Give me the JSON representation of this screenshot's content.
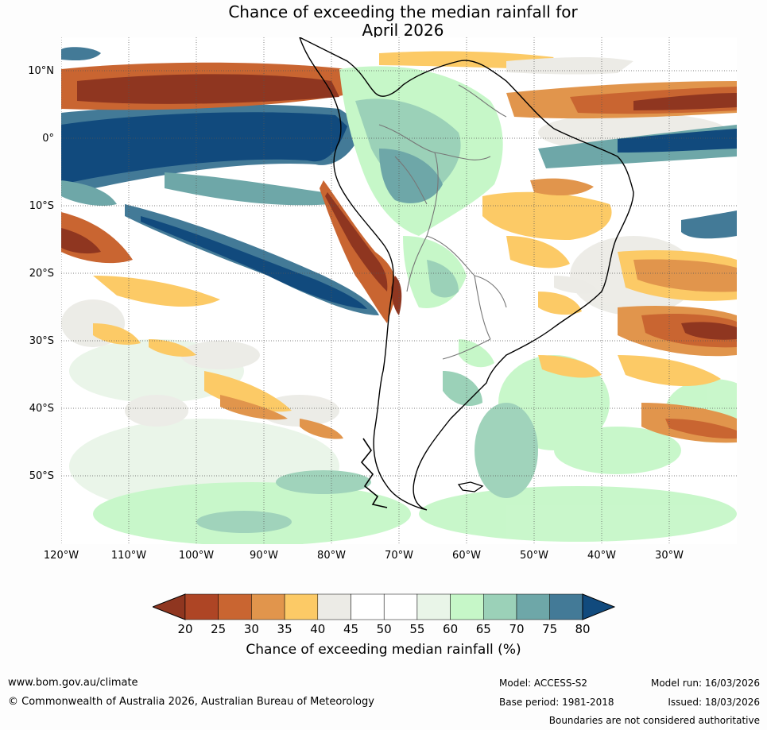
{
  "title": {
    "line1": "Chance of exceeding the median rainfall for",
    "line2": "April 2026"
  },
  "map": {
    "lat_labels": [
      "10°N",
      "0°",
      "10°S",
      "20°S",
      "30°S",
      "40°S",
      "50°S"
    ],
    "lon_labels": [
      "120°W",
      "110°W",
      "100°W",
      "90°W",
      "80°W",
      "70°W",
      "60°W",
      "50°W",
      "40°W",
      "30°W"
    ]
  },
  "colorbar": {
    "ticks": [
      "20",
      "25",
      "30",
      "35",
      "40",
      "45",
      "50",
      "55",
      "60",
      "65",
      "70",
      "75",
      "80"
    ],
    "colors": [
      "#8f3620",
      "#ae4525",
      "#c96531",
      "#e1954c",
      "#fcca66",
      "#ecebe6",
      "#ffffff",
      "#ffffff",
      "#e9f5e8",
      "#c6f7c8",
      "#9bd1b8",
      "#6ea7a8",
      "#437a97",
      "#114a7d"
    ],
    "label": "Chance of exceeding median rainfall (%)"
  },
  "footer": {
    "website": "www.bom.gov.au/climate",
    "copyright": "© Commonwealth of Australia 2026, Australian Bureau of Meteorology",
    "model": "Model: ACCESS-S2",
    "base_period": "Base period: 1981-2018",
    "model_run": "Model run: 16/03/2026",
    "issued": "Issued: 18/03/2026",
    "disclaimer": "Boundaries are not considered authoritative"
  }
}
